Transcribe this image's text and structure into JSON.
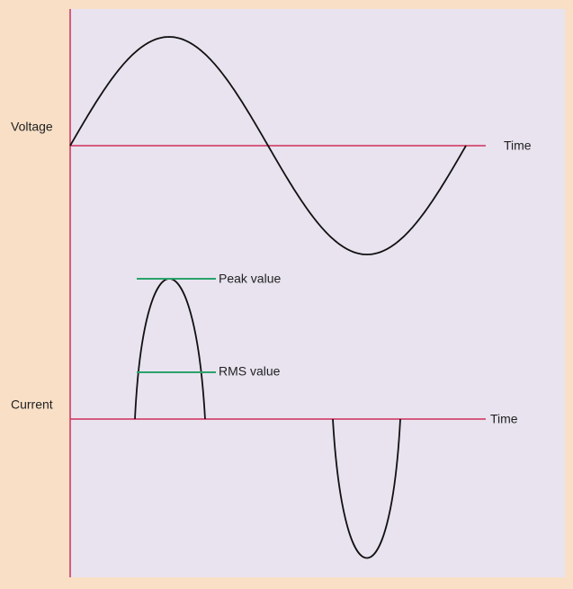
{
  "voltage": {
    "label": "Voltage",
    "axis_label": "Time"
  },
  "current": {
    "label": "Current",
    "axis_label": "Time",
    "peak_label": "Peak value",
    "rms_label": "RMS value"
  }
}
